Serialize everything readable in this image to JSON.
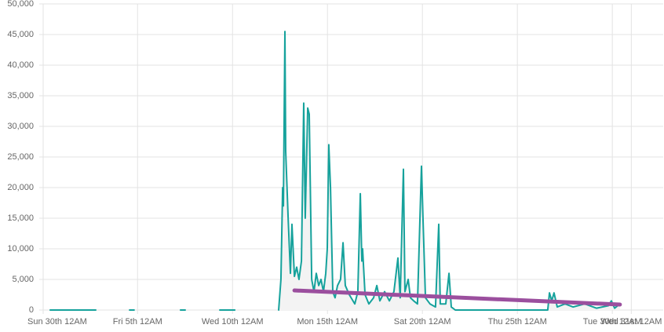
{
  "chart_data": {
    "type": "line",
    "x": [
      1.4,
      3.8,
      4.7,
      5.58,
      5.82,
      7.0,
      8.26,
      8.51,
      9.4,
      10.33,
      11.12,
      12.3,
      13.43,
      13.55,
      13.64,
      13.68,
      13.76,
      13.8,
      13.93,
      14.05,
      14.13,
      14.26,
      14.38,
      14.5,
      14.63,
      14.75,
      14.83,
      14.96,
      15.04,
      15.17,
      15.29,
      15.41,
      15.54,
      15.66,
      15.79,
      15.91,
      15.99,
      16.07,
      16.16,
      16.28,
      16.4,
      16.53,
      16.69,
      16.82,
      16.94,
      17.15,
      17.44,
      17.6,
      17.73,
      17.81,
      17.85,
      17.98,
      18.18,
      18.43,
      18.6,
      18.76,
      19.01,
      19.26,
      19.5,
      19.71,
      19.83,
      20.0,
      20.08,
      20.25,
      20.37,
      20.54,
      20.74,
      20.95,
      21.03,
      21.16,
      21.4,
      21.69,
      21.86,
      21.94,
      22.23,
      22.4,
      22.52,
      22.73,
      27.27,
      27.6,
      27.69,
      27.81,
      27.93,
      28.1,
      28.51,
      28.93,
      29.55,
      30.17,
      30.79,
      30.95,
      31.12,
      31.4
    ],
    "series": [
      {
        "color": "#16a29c",
        "values": [
          0,
          0,
          null,
          0,
          0,
          null,
          0,
          0,
          null,
          0,
          0,
          null,
          0,
          5000,
          20000,
          17000,
          45500,
          26000,
          15000,
          6000,
          14000,
          5500,
          7000,
          5000,
          8000,
          33800,
          15000,
          33000,
          32000,
          5000,
          3000,
          6000,
          4000,
          5000,
          3000,
          6000,
          10000,
          27000,
          20000,
          3000,
          2000,
          4000,
          5000,
          11000,
          4000,
          2500,
          1000,
          3000,
          19000,
          8000,
          10000,
          2500,
          1000,
          2000,
          4000,
          1500,
          3000,
          1500,
          3000,
          8500,
          2000,
          23000,
          3000,
          5000,
          2000,
          1500,
          1000,
          23500,
          15000,
          2000,
          1000,
          500,
          14000,
          1000,
          1000,
          6000,
          500,
          0,
          0,
          0,
          2800,
          1500,
          2800,
          500,
          1000,
          500,
          1000,
          300,
          700,
          1500,
          300,
          1000
        ]
      },
      {
        "color": "#9b4f9e",
        "x": [
          14.26,
          31.4
        ],
        "values": [
          3200,
          900
        ]
      }
    ],
    "xlim": [
      1.03,
      33.68
    ],
    "xticks": [
      {
        "value": 0,
        "label": "Sun 30th 12AM"
      },
      {
        "value": 6,
        "label": "Fri 5th 12AM"
      },
      {
        "value": 11,
        "label": "Wed 10th 12AM"
      },
      {
        "value": 16,
        "label": "Mon 15th 12AM"
      },
      {
        "value": 21,
        "label": "Sat 20th 12AM"
      },
      {
        "value": 26,
        "label": "Thu 25th 12AM"
      },
      {
        "value": 31,
        "label": "Tue 30th 12AM"
      },
      {
        "value": 32,
        "label": "Wed 31st 12AM"
      }
    ],
    "ylim": [
      0,
      50000
    ],
    "yticks": [
      0,
      {
        "value": 5000,
        "label": "5,000"
      },
      {
        "value": 10000,
        "label": "10,000"
      },
      {
        "value": 15000,
        "label": "15,000"
      },
      {
        "value": 20000,
        "label": "20,000"
      },
      {
        "value": 25000,
        "label": "25,000"
      },
      {
        "value": 30000,
        "label": "30,000"
      },
      {
        "value": 35000,
        "label": "35,000"
      },
      {
        "value": 40000,
        "label": "40,000"
      },
      {
        "value": 45000,
        "label": "45,000"
      },
      {
        "value": 50000,
        "label": "50,000"
      }
    ],
    "grid": true
  }
}
